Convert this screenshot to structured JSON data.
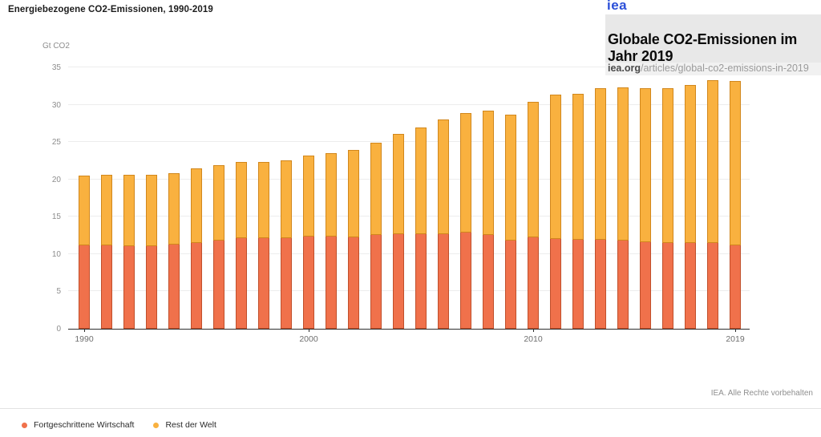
{
  "header": {
    "chart_title": "Energiebezogene CO2-Emissionen, 1990-2019",
    "unit_label": "Gt CO2"
  },
  "overlay": {
    "logo_text": "iea",
    "logo_color": "#2b4fd8",
    "title": "Globale CO2-Emissionen im Jahr 2019",
    "url_host": "iea.org",
    "url_path": "/articles/global-co2-emissions-in-2019"
  },
  "footer": {
    "copyright": "IEA. Alle Rechte vorbehalten"
  },
  "legend": [
    {
      "label": "Fortgeschrittene Wirtschaft",
      "color": "#f0714b"
    },
    {
      "label": "Rest der Welt",
      "color": "#f9b13f"
    }
  ],
  "chart_data": {
    "type": "bar",
    "stacked": true,
    "title": "Energiebezogene CO2-Emissionen, 1990-2019",
    "ylabel": "Gt CO2",
    "ylim": [
      0,
      35
    ],
    "ytick_step": 5,
    "grid": true,
    "legend_position": "bottom-left",
    "categories": [
      1990,
      1991,
      1992,
      1993,
      1994,
      1995,
      1996,
      1997,
      1998,
      1999,
      2000,
      2001,
      2002,
      2003,
      2004,
      2005,
      2006,
      2007,
      2008,
      2009,
      2010,
      2011,
      2012,
      2013,
      2014,
      2015,
      2016,
      2017,
      2018,
      2019
    ],
    "x_axis_ticks": [
      {
        "index": 0,
        "label": "1990"
      },
      {
        "index": 10,
        "label": "2000"
      },
      {
        "index": 20,
        "label": "2010"
      },
      {
        "index": 29,
        "label": "2019"
      }
    ],
    "series": [
      {
        "name": "Fortgeschrittene Wirtschaft",
        "color": "#f0714b",
        "border_color": "#c04f2b",
        "values": [
          11.3,
          11.3,
          11.2,
          11.2,
          11.4,
          11.6,
          11.9,
          12.2,
          12.2,
          12.2,
          12.5,
          12.5,
          12.4,
          12.7,
          12.8,
          12.8,
          12.8,
          13.0,
          12.7,
          11.9,
          12.3,
          12.1,
          12.0,
          12.0,
          11.9,
          11.7,
          11.6,
          11.6,
          11.6,
          11.3
        ]
      },
      {
        "name": "Rest der Welt",
        "color": "#f9b13f",
        "border_color": "#d1871c",
        "values": [
          9.2,
          9.3,
          9.4,
          9.4,
          9.4,
          9.9,
          10.0,
          10.1,
          10.1,
          10.4,
          10.7,
          11.0,
          11.5,
          12.2,
          13.3,
          14.1,
          15.2,
          15.9,
          16.5,
          16.8,
          18.1,
          19.2,
          19.5,
          20.2,
          20.4,
          20.5,
          20.6,
          21.0,
          21.7,
          21.9
        ]
      }
    ],
    "totals": [
      20.5,
      20.6,
      20.6,
      20.6,
      20.8,
      21.5,
      21.9,
      22.3,
      22.3,
      22.6,
      23.2,
      23.5,
      23.9,
      24.9,
      26.1,
      26.9,
      28.0,
      28.9,
      29.2,
      28.7,
      30.4,
      31.3,
      31.5,
      32.2,
      32.3,
      32.2,
      32.2,
      32.6,
      33.3,
      33.2
    ]
  }
}
